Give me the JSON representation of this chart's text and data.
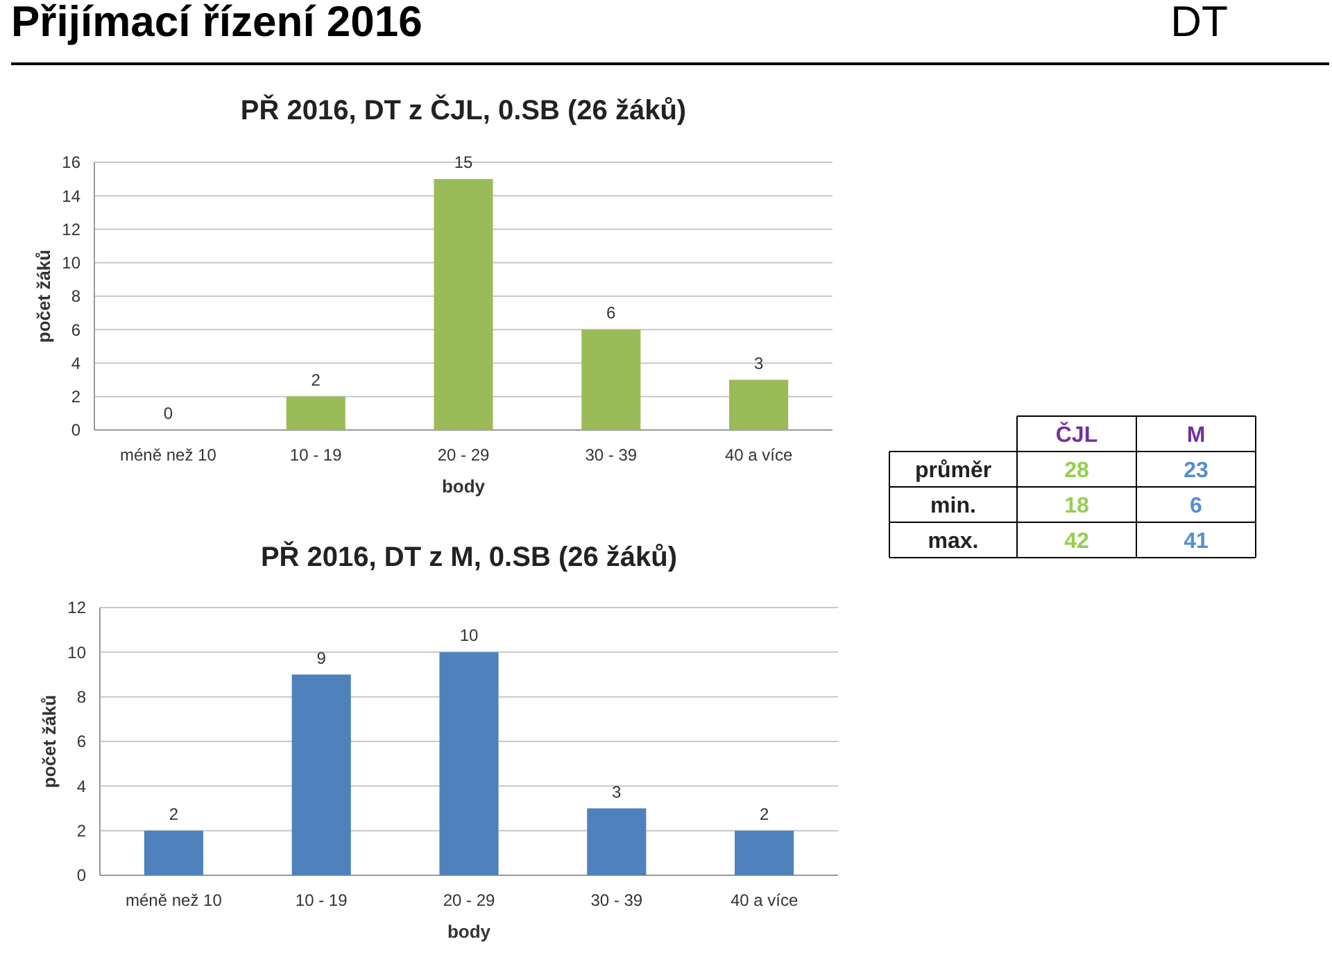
{
  "chart_data": [
    {
      "type": "bar",
      "title": "PŘ 2016, DT z ČJL, 0.SB (26 žáků)",
      "xlabel": "body",
      "ylabel": "počet žáků",
      "categories": [
        "méně než 10",
        "10 - 19",
        "20 - 29",
        "30 - 39",
        "40 a více"
      ],
      "values": [
        0,
        2,
        15,
        6,
        3
      ],
      "color": "#9bbb59",
      "ylim": [
        0,
        16
      ],
      "yticks": [
        0,
        2,
        4,
        6,
        8,
        10,
        12,
        14,
        16
      ],
      "grid": "y",
      "data_labels": true
    },
    {
      "type": "bar",
      "title": "PŘ 2016, DT z M, 0.SB (26 žáků)",
      "xlabel": "body",
      "ylabel": "počet žáků",
      "categories": [
        "méně než 10",
        "10 - 19",
        "20 - 29",
        "30 - 39",
        "40 a více"
      ],
      "values": [
        2,
        9,
        10,
        3,
        2
      ],
      "color": "#4f81bd",
      "ylim": [
        0,
        12
      ],
      "yticks": [
        0,
        2,
        4,
        6,
        8,
        10,
        12
      ],
      "grid": "y",
      "data_labels": true
    },
    {
      "type": "other",
      "title": "Přijímací řízení 2016",
      "subtitle": "DT",
      "categories": [
        "ČJL",
        "M"
      ],
      "y_categories": [
        "průměr",
        "min.",
        "max."
      ],
      "cell_labels": [
        [
          "28",
          "23"
        ],
        [
          "18",
          "6"
        ],
        [
          "42",
          "41"
        ]
      ],
      "colors": [
        "#92d050",
        "#558ed5"
      ]
    }
  ]
}
